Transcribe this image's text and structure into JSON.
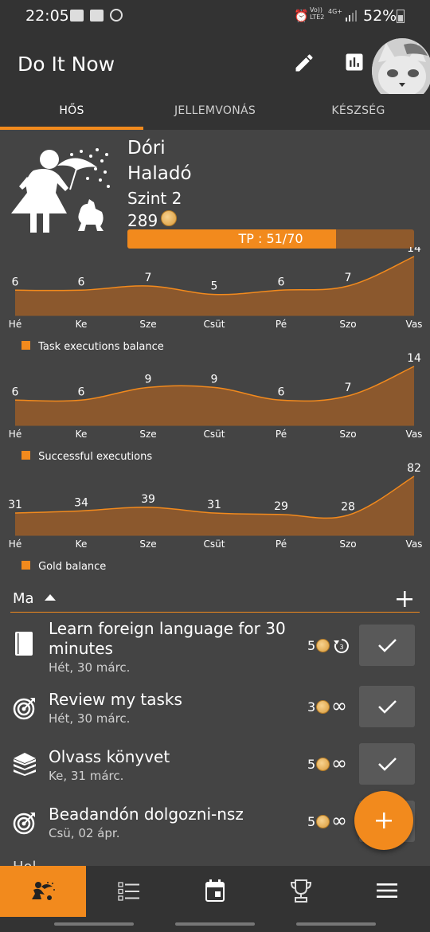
{
  "status": {
    "time": "22:05",
    "net_top": "Vo))",
    "net_bottom": "LTE2",
    "net4g": "4G+",
    "battery": "52%"
  },
  "app": {
    "title": "Do It Now"
  },
  "tabs": [
    {
      "label": "HŐS"
    },
    {
      "label": "JELLEMVONÁS"
    },
    {
      "label": "KÉSZSÉG"
    }
  ],
  "hero": {
    "name": "Dóri",
    "rank": "Haladó",
    "level": "Szint 2",
    "gold": "289",
    "tp_label": "TP : 51/70",
    "tp_fraction": 0.7286
  },
  "chart_data": [
    {
      "type": "area",
      "categories": [
        "Hé",
        "Ke",
        "Sze",
        "Csüt",
        "Pé",
        "Szo",
        "Vas"
      ],
      "values": [
        6,
        6,
        7,
        5,
        6,
        7,
        14
      ],
      "series": [
        {
          "name": "Task executions balance",
          "values": [
            6,
            6,
            7,
            5,
            6,
            7,
            14
          ]
        }
      ],
      "legend": "Task executions balance",
      "legend_position": "bottom-left",
      "color": "#f28a1d"
    },
    {
      "type": "area",
      "categories": [
        "Hé",
        "Ke",
        "Sze",
        "Csüt",
        "Pé",
        "Szo",
        "Vas"
      ],
      "values": [
        6,
        6,
        9,
        9,
        6,
        7,
        14
      ],
      "series": [
        {
          "name": "Successful executions",
          "values": [
            6,
            6,
            9,
            9,
            6,
            7,
            14
          ]
        }
      ],
      "legend": "Successful executions",
      "legend_position": "bottom-left",
      "color": "#f28a1d"
    },
    {
      "type": "area",
      "categories": [
        "Hé",
        "Ke",
        "Sze",
        "Csüt",
        "Pé",
        "Szo",
        "Vas"
      ],
      "values": [
        31,
        34,
        39,
        31,
        29,
        28,
        82
      ],
      "series": [
        {
          "name": "Gold balance",
          "values": [
            31,
            34,
            39,
            31,
            29,
            28,
            82
          ]
        }
      ],
      "legend": "Gold balance",
      "legend_position": "bottom-left",
      "color": "#f28a1d"
    }
  ],
  "section": {
    "label": "Ma"
  },
  "tasks": [
    {
      "title_line1": "Learn foreign language for 30",
      "title_line2": "minutes",
      "date": "Hét, 30 márc.",
      "gold": "5",
      "icon": "notebook-icon",
      "extra": "repeat-icon"
    },
    {
      "title_line1": "Review my tasks",
      "title_line2": "",
      "date": "Hét, 30 márc.",
      "gold": "3",
      "icon": "target-icon",
      "extra": "infinity-icon"
    },
    {
      "title_line1": "Olvass könyvet",
      "title_line2": "",
      "date": "Ke, 31 márc.",
      "gold": "5",
      "icon": "books-icon",
      "extra": "infinity-icon"
    },
    {
      "title_line1": "Beadandón dolgozni-nsz",
      "title_line2": "",
      "date": "Csü, 02 ápr.",
      "gold": "5",
      "icon": "target-icon",
      "extra": "infinity-icon"
    }
  ],
  "partial_next": {
    "label": "Hol"
  },
  "colors": {
    "accent": "#f28a1d",
    "bg": "#444444",
    "bar": "#333333"
  }
}
